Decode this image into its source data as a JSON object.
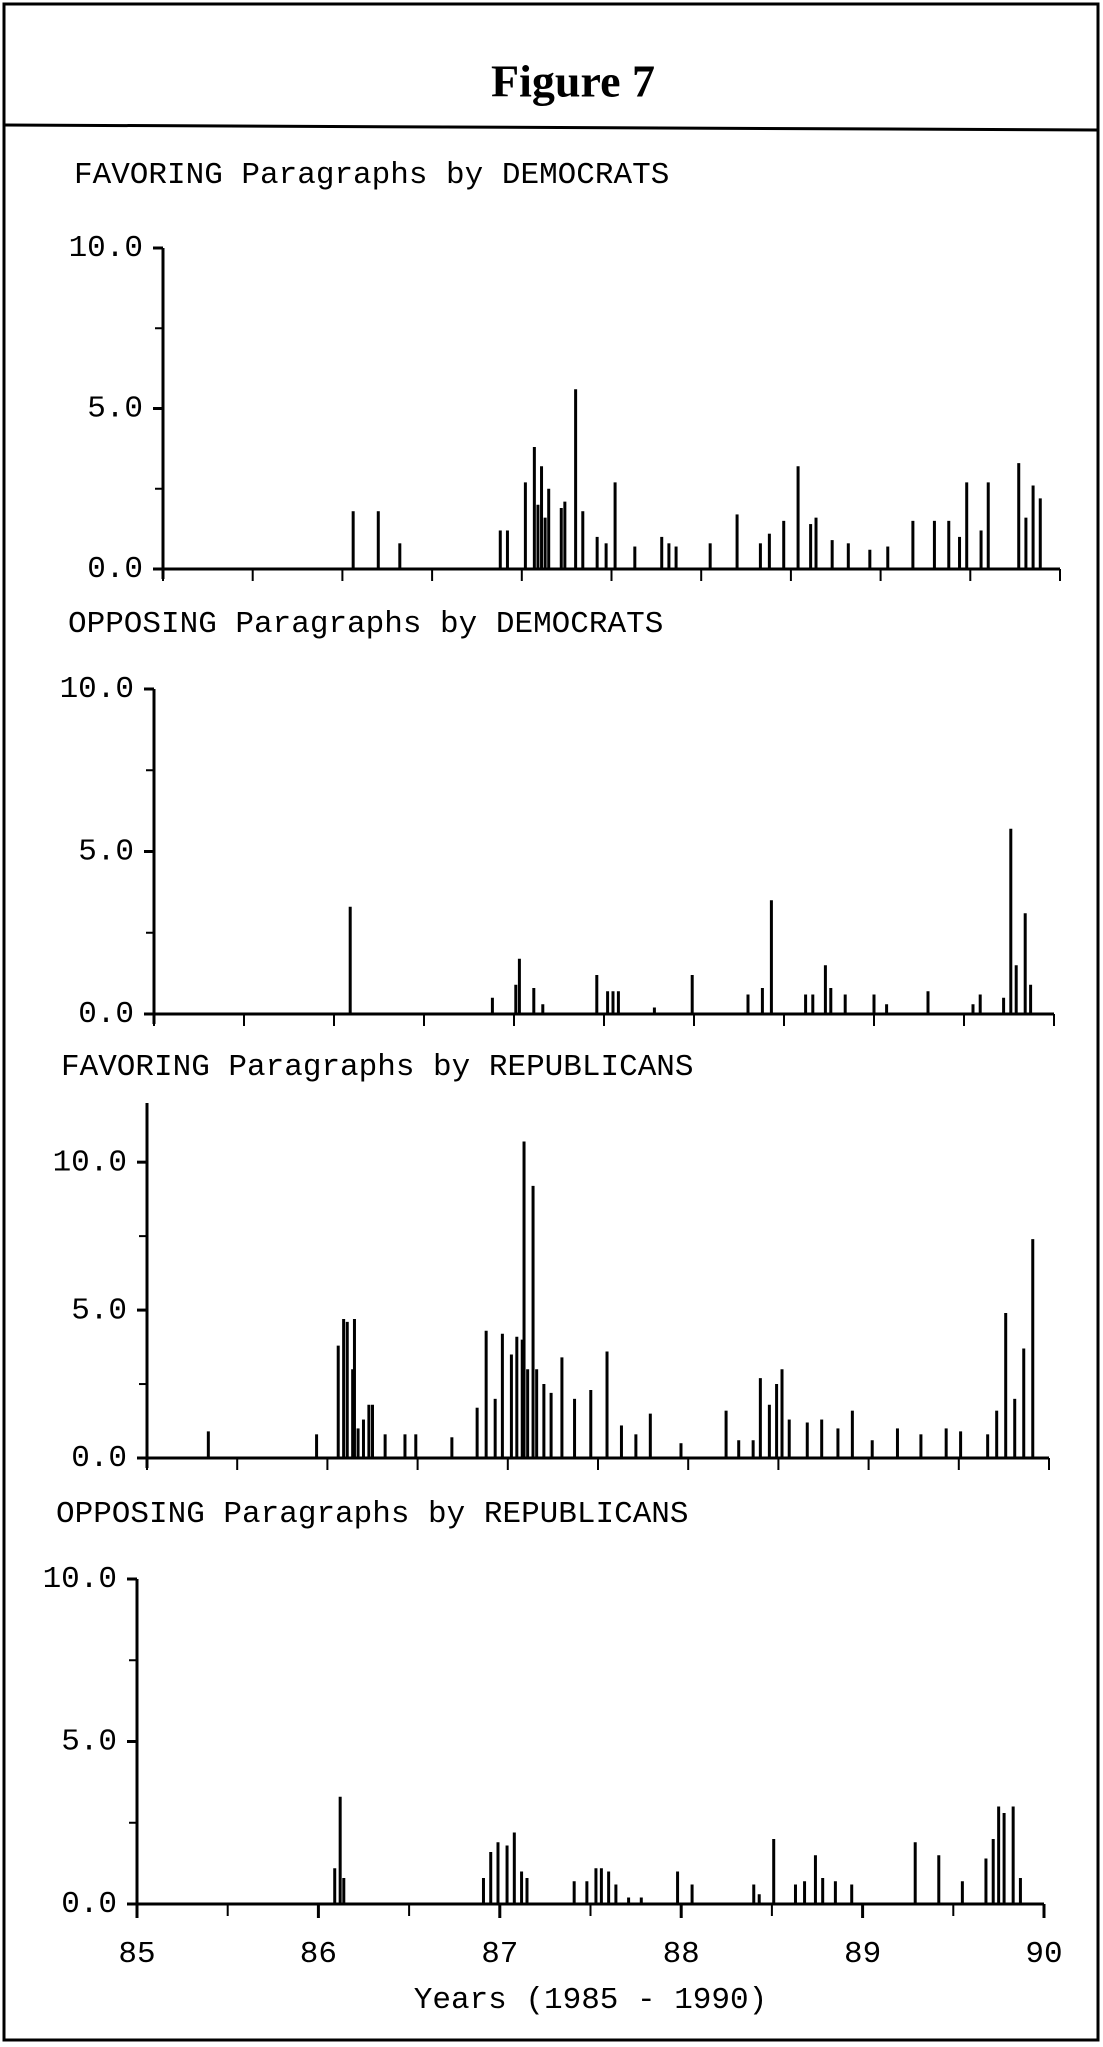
{
  "title": "Figure 7",
  "chart_data": [
    {
      "type": "spike",
      "title": "FAVORING Paragraphs by DEMOCRATS",
      "color": "#000000",
      "xlim": [
        85,
        90
      ],
      "ylim": [
        0,
        10
      ],
      "yticks": [
        {
          "value": 0,
          "label": "0.0"
        },
        {
          "value": 5,
          "label": "5.0"
        },
        {
          "value": 10,
          "label": "10.0"
        }
      ],
      "minor_yticks": [
        2.5,
        7.5
      ],
      "xtick_marks": [
        85,
        85.5,
        86,
        86.5,
        87,
        87.5,
        88,
        88.5,
        89,
        89.5,
        90
      ],
      "x": [
        86.06,
        86.2,
        86.32,
        86.88,
        86.92,
        87.02,
        87.07,
        87.09,
        87.11,
        87.13,
        87.15,
        87.22,
        87.24,
        87.3,
        87.34,
        87.42,
        87.47,
        87.52,
        87.63,
        87.78,
        87.82,
        87.86,
        88.05,
        88.2,
        88.33,
        88.38,
        88.46,
        88.54,
        88.61,
        88.64,
        88.73,
        88.82,
        88.94,
        89.04,
        89.18,
        89.3,
        89.38,
        89.44,
        89.48,
        89.56,
        89.6,
        89.77,
        89.81,
        89.85,
        89.89
      ],
      "values": [
        1.8,
        1.8,
        0.8,
        1.2,
        1.2,
        2.7,
        3.8,
        2.0,
        3.2,
        1.6,
        2.5,
        1.9,
        2.1,
        5.6,
        1.8,
        1.0,
        0.8,
        2.7,
        0.7,
        1.0,
        0.8,
        0.7,
        0.8,
        1.7,
        0.8,
        1.1,
        1.5,
        3.2,
        1.4,
        1.6,
        0.9,
        0.8,
        0.6,
        0.7,
        1.5,
        1.5,
        1.5,
        1.0,
        2.7,
        1.2,
        2.7,
        3.3,
        1.6,
        2.6,
        2.2
      ]
    },
    {
      "type": "spike",
      "title": "OPPOSING Paragraphs by DEMOCRATS",
      "color": "#000000",
      "xlim": [
        85,
        90
      ],
      "ylim": [
        0,
        10
      ],
      "yticks": [
        {
          "value": 0,
          "label": "0.0"
        },
        {
          "value": 5,
          "label": "5.0"
        },
        {
          "value": 10,
          "label": "10.0"
        }
      ],
      "minor_yticks": [
        2.5,
        7.5
      ],
      "xtick_marks": [
        85,
        85.5,
        86,
        86.5,
        87,
        87.5,
        88,
        88.5,
        89,
        89.5,
        90
      ],
      "x": [
        86.09,
        86.88,
        87.01,
        87.03,
        87.11,
        87.16,
        87.46,
        87.52,
        87.55,
        87.58,
        87.78,
        87.99,
        88.3,
        88.38,
        88.43,
        88.62,
        88.66,
        88.73,
        88.76,
        88.84,
        89.0,
        89.07,
        89.3,
        89.55,
        89.59,
        89.72,
        89.76,
        89.79,
        89.84,
        89.87
      ],
      "values": [
        3.3,
        0.5,
        0.9,
        1.7,
        0.8,
        0.3,
        1.2,
        0.7,
        0.7,
        0.7,
        0.2,
        1.2,
        0.6,
        0.8,
        3.5,
        0.6,
        0.6,
        1.5,
        0.8,
        0.6,
        0.6,
        0.3,
        0.7,
        0.3,
        0.6,
        0.5,
        5.7,
        1.5,
        3.1,
        0.9
      ]
    },
    {
      "type": "spike",
      "title": "FAVORING Paragraphs by REPUBLICANS",
      "color": "#000000",
      "xlim": [
        85,
        90
      ],
      "ylim": [
        0,
        12
      ],
      "yticks": [
        {
          "value": 0,
          "label": "0.0"
        },
        {
          "value": 5,
          "label": "5.0"
        },
        {
          "value": 10,
          "label": "10.0"
        }
      ],
      "minor_yticks": [
        2.5,
        7.5
      ],
      "xtick_marks": [
        85,
        85.5,
        86,
        86.5,
        87,
        87.5,
        88,
        88.5,
        89,
        89.5,
        90
      ],
      "x": [
        85.34,
        85.94,
        86.06,
        86.09,
        86.11,
        86.14,
        86.15,
        86.17,
        86.2,
        86.23,
        86.25,
        86.32,
        86.43,
        86.49,
        86.69,
        86.83,
        86.88,
        86.93,
        86.97,
        87.02,
        87.05,
        87.08,
        87.09,
        87.11,
        87.14,
        87.16,
        87.2,
        87.24,
        87.3,
        87.37,
        87.46,
        87.55,
        87.63,
        87.71,
        87.79,
        87.96,
        88.21,
        88.28,
        88.36,
        88.4,
        88.45,
        88.49,
        88.52,
        88.56,
        88.66,
        88.74,
        88.83,
        88.91,
        89.02,
        89.16,
        89.29,
        89.43,
        89.51,
        89.66,
        89.71,
        89.76,
        89.81,
        89.86,
        89.91
      ],
      "values": [
        0.9,
        0.8,
        3.8,
        4.7,
        4.6,
        3.0,
        4.7,
        1.0,
        1.3,
        1.8,
        1.8,
        0.8,
        0.8,
        0.8,
        0.7,
        1.7,
        4.3,
        2.0,
        4.2,
        3.5,
        4.1,
        4.0,
        10.7,
        3.0,
        9.2,
        3.0,
        2.5,
        2.2,
        3.4,
        2.0,
        2.3,
        3.6,
        1.1,
        0.8,
        1.5,
        0.5,
        1.6,
        0.6,
        0.6,
        2.7,
        1.8,
        2.5,
        3.0,
        1.3,
        1.2,
        1.3,
        1.0,
        1.6,
        0.6,
        1.0,
        0.8,
        1.0,
        0.9,
        0.8,
        1.6,
        4.9,
        2.0,
        3.7,
        7.4
      ]
    },
    {
      "type": "spike",
      "title": "OPPOSING Paragraphs by REPUBLICANS",
      "color": "#000000",
      "xlim": [
        85,
        90
      ],
      "ylim": [
        0,
        10
      ],
      "yticks": [
        {
          "value": 0,
          "label": "0.0"
        },
        {
          "value": 5,
          "label": "5.0"
        },
        {
          "value": 10,
          "label": "10.0"
        }
      ],
      "minor_yticks": [
        2.5,
        7.5
      ],
      "xticks": [
        85,
        86,
        87,
        88,
        89,
        90
      ],
      "xtick_marks": [
        85.5,
        86.5,
        87.5,
        88.5,
        89.5
      ],
      "xlabel": "Years (1985 - 1990)",
      "x": [
        86.09,
        86.12,
        86.14,
        86.91,
        86.95,
        86.99,
        87.04,
        87.08,
        87.12,
        87.15,
        87.41,
        87.48,
        87.53,
        87.56,
        87.6,
        87.64,
        87.71,
        87.78,
        87.98,
        88.06,
        88.4,
        88.43,
        88.51,
        88.63,
        88.68,
        88.74,
        88.78,
        88.85,
        88.94,
        89.29,
        89.42,
        89.55,
        89.68,
        89.72,
        89.75,
        89.78,
        89.83,
        89.87
      ],
      "values": [
        1.1,
        3.3,
        0.8,
        0.8,
        1.6,
        1.9,
        1.8,
        2.2,
        1.0,
        0.8,
        0.7,
        0.7,
        1.1,
        1.1,
        1.0,
        0.6,
        0.2,
        0.2,
        1.0,
        0.6,
        0.6,
        0.3,
        2.0,
        0.6,
        0.7,
        1.5,
        0.8,
        0.7,
        0.6,
        1.9,
        1.5,
        0.7,
        1.4,
        2.0,
        3.0,
        2.8,
        3.0,
        0.8
      ]
    }
  ]
}
